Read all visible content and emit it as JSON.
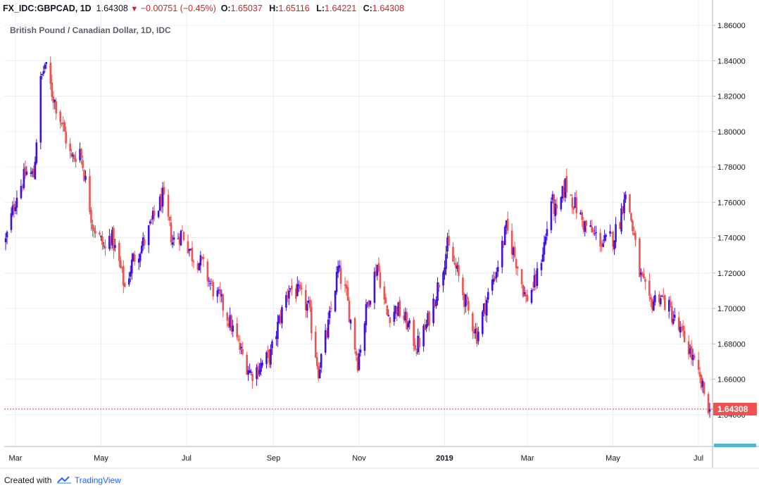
{
  "header": {
    "symbol": "FX_IDC:GBPCAD, 1D",
    "last": "1.64308",
    "arrow": "▼",
    "change": "−0.00751 (−0.45%)",
    "o_label": "O:",
    "o_value": "1.65037",
    "h_label": "H:",
    "h_value": "1.65116",
    "l_label": "L:",
    "l_value": "1.64221",
    "c_label": "C:",
    "c_value": "1.64308"
  },
  "footer": {
    "created_with": "Created with",
    "brand": "TradingView",
    "brand_icon": "tradingview-cloud-icon"
  },
  "colors": {
    "up": "#3f10e0",
    "down": "#ef5350",
    "grid": "#e9edf2",
    "axis_text": "#131722",
    "price_line": "#e53935",
    "price_tag": "#ef5350"
  },
  "chart_data": {
    "type": "candlestick",
    "title": "British Pound / Canadian Dollar, 1D, IDC",
    "x_tick_labels": [
      "Mar",
      "May",
      "Jul",
      "Sep",
      "Nov",
      "2019",
      "Mar",
      "May",
      "Jul"
    ],
    "y_tick_labels": [
      "1.86000",
      "1.84000",
      "1.82000",
      "1.80000",
      "1.78000",
      "1.76000",
      "1.74000",
      "1.72000",
      "1.70000",
      "1.68000",
      "1.66000",
      "1.64000"
    ],
    "ylim": [
      1.622,
      1.864
    ],
    "grid": true,
    "last_price": 1.64308,
    "last_price_label": "1.64308",
    "x_range": [
      "2018-02-21",
      "2019-07-11"
    ],
    "anchors": [
      [
        "2018-02-22",
        1.738
      ],
      [
        "2018-03-02",
        1.765
      ],
      [
        "2018-03-09",
        1.777
      ],
      [
        "2018-03-14",
        1.775
      ],
      [
        "2018-03-19",
        1.828
      ],
      [
        "2018-03-22",
        1.838
      ],
      [
        "2018-03-27",
        1.822
      ],
      [
        "2018-04-03",
        1.805
      ],
      [
        "2018-04-10",
        1.784
      ],
      [
        "2018-04-16",
        1.79
      ],
      [
        "2018-04-20",
        1.772
      ],
      [
        "2018-04-25",
        1.748
      ],
      [
        "2018-05-04",
        1.733
      ],
      [
        "2018-05-08",
        1.742
      ],
      [
        "2018-05-14",
        1.725
      ],
      [
        "2018-05-18",
        1.712
      ],
      [
        "2018-05-24",
        1.728
      ],
      [
        "2018-06-01",
        1.738
      ],
      [
        "2018-06-08",
        1.752
      ],
      [
        "2018-06-14",
        1.763
      ],
      [
        "2018-06-21",
        1.738
      ],
      [
        "2018-06-28",
        1.743
      ],
      [
        "2018-07-05",
        1.73
      ],
      [
        "2018-07-12",
        1.725
      ],
      [
        "2018-07-19",
        1.712
      ],
      [
        "2018-07-26",
        1.703
      ],
      [
        "2018-08-02",
        1.69
      ],
      [
        "2018-08-09",
        1.675
      ],
      [
        "2018-08-16",
        1.663
      ],
      [
        "2018-08-23",
        1.668
      ],
      [
        "2018-08-30",
        1.674
      ],
      [
        "2018-09-05",
        1.693
      ],
      [
        "2018-09-12",
        1.712
      ],
      [
        "2018-09-19",
        1.708
      ],
      [
        "2018-09-26",
        1.7
      ],
      [
        "2018-10-03",
        1.665
      ],
      [
        "2018-10-10",
        1.69
      ],
      [
        "2018-10-17",
        1.722
      ],
      [
        "2018-10-23",
        1.707
      ],
      [
        "2018-10-31",
        1.67
      ],
      [
        "2018-11-07",
        1.703
      ],
      [
        "2018-11-14",
        1.725
      ],
      [
        "2018-11-21",
        1.696
      ],
      [
        "2018-11-28",
        1.7
      ],
      [
        "2018-12-05",
        1.692
      ],
      [
        "2018-12-12",
        1.678
      ],
      [
        "2018-12-19",
        1.69
      ],
      [
        "2018-12-27",
        1.712
      ],
      [
        "2019-01-03",
        1.735
      ],
      [
        "2019-01-10",
        1.72
      ],
      [
        "2019-01-17",
        1.7
      ],
      [
        "2019-01-24",
        1.685
      ],
      [
        "2019-01-31",
        1.705
      ],
      [
        "2019-02-07",
        1.722
      ],
      [
        "2019-02-14",
        1.745
      ],
      [
        "2019-02-21",
        1.727
      ],
      [
        "2019-02-28",
        1.705
      ],
      [
        "2019-03-07",
        1.715
      ],
      [
        "2019-03-14",
        1.74
      ],
      [
        "2019-03-18",
        1.762
      ],
      [
        "2019-03-22",
        1.752
      ],
      [
        "2019-03-28",
        1.77
      ],
      [
        "2019-04-03",
        1.76
      ],
      [
        "2019-04-10",
        1.748
      ],
      [
        "2019-04-17",
        1.742
      ],
      [
        "2019-04-24",
        1.737
      ],
      [
        "2019-05-01",
        1.74
      ],
      [
        "2019-05-06",
        1.75
      ],
      [
        "2019-05-09",
        1.765
      ],
      [
        "2019-05-13",
        1.755
      ],
      [
        "2019-05-20",
        1.72
      ],
      [
        "2019-05-27",
        1.702
      ],
      [
        "2019-06-03",
        1.708
      ],
      [
        "2019-06-10",
        1.7
      ],
      [
        "2019-06-17",
        1.688
      ],
      [
        "2019-06-24",
        1.678
      ],
      [
        "2019-07-01",
        1.661
      ],
      [
        "2019-07-09",
        1.643
      ]
    ]
  }
}
